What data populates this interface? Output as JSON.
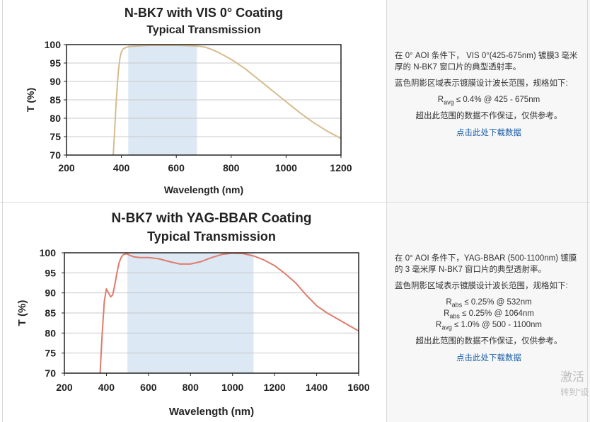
{
  "panels": [
    {
      "chart_data": {
        "type": "line",
        "title": "N-BK7 with VIS 0° Coating",
        "subtitle": "Typical Transmission",
        "xlabel": "Wavelength (nm)",
        "ylabel": "T (%)",
        "xlim": [
          200,
          1200
        ],
        "ylim": [
          70,
          100
        ],
        "xticks": [
          "200",
          "400",
          "600",
          "800",
          "1000",
          "1200"
        ],
        "yticks": [
          "70",
          "75",
          "80",
          "85",
          "90",
          "95",
          "100"
        ],
        "grid": true,
        "shaded_band": [
          425,
          675
        ],
        "shaded_color": "#dce8f4",
        "series": [
          {
            "color": "#d6bc8e",
            "x": [
              370,
              372,
              375,
              380,
              385,
              390,
              395,
              400,
              405,
              410,
              420,
              430,
              450,
              475,
              500,
              550,
              600,
              650,
              675,
              700,
              725,
              750,
              800,
              850,
              900,
              950,
              1000,
              1050,
              1100,
              1150,
              1200
            ],
            "y": [
              70,
              72,
              76,
              83,
              89,
              93.5,
              96.5,
              98,
              98.7,
              99,
              99.3,
              99.5,
              99.6,
              99.7,
              99.8,
              99.8,
              99.8,
              99.7,
              99.6,
              99.4,
              98.8,
              98,
              96,
              93.5,
              90.5,
              87.5,
              84.5,
              81.5,
              78.8,
              76.5,
              74.5
            ]
          }
        ]
      },
      "desc": {
        "line1": "在 0° AOI 条件下， VIS 0°(425-675nm) 镀膜3 毫米厚的 N-BK7 窗口片的典型透射率。",
        "line2": "蓝色阴影区域表示镀膜设计波长范围，规格如下:",
        "specs": [
          {
            "main": "R",
            "sub": "avg",
            "rest": " ≤ 0.4% @ 425 - 675nm"
          }
        ],
        "line3": "超出此范围的数据不作保证，仅供参考。",
        "link": "点击此处下载数据"
      }
    },
    {
      "chart_data": {
        "type": "line",
        "title": "N-BK7 with YAG-BBAR Coating",
        "subtitle": "Typical Transmission",
        "xlabel": "Wavelength (nm)",
        "ylabel": "T (%)",
        "xlim": [
          200,
          1600
        ],
        "ylim": [
          70,
          100
        ],
        "xticks": [
          "200",
          "400",
          "600",
          "800",
          "1000",
          "1200",
          "1400",
          "1600"
        ],
        "yticks": [
          "70",
          "75",
          "80",
          "85",
          "90",
          "95",
          "100"
        ],
        "grid": true,
        "shaded_band": [
          500,
          1100
        ],
        "shaded_color": "#dce8f4",
        "series": [
          {
            "color": "#e07b6c",
            "x": [
              370,
              380,
              390,
              400,
              410,
              420,
              430,
              440,
              450,
              460,
              470,
              480,
              490,
              500,
              510,
              530,
              560,
              600,
              650,
              700,
              750,
              800,
              850,
              900,
              950,
              1000,
              1050,
              1100,
              1150,
              1200,
              1250,
              1300,
              1350,
              1400,
              1450,
              1500,
              1550,
              1600
            ],
            "y": [
              70,
              80,
              88,
              91,
              90,
              89,
              89.5,
              92,
              95,
              97.5,
              98.8,
              99.5,
              99.7,
              99.7,
              99.4,
              99,
              98.8,
              98.8,
              98.5,
              97.8,
              97.2,
              97.2,
              97.8,
              98.8,
              99.6,
              99.9,
              99.8,
              99.2,
              98.2,
              96.8,
              94.8,
              92.5,
              89.5,
              86.8,
              85,
              83.5,
              82,
              80.5
            ]
          }
        ]
      },
      "desc": {
        "line1": "在 0° AOI 条件下，YAG-BBAR (500-1100nm) 镀膜的 3 毫米厚 N-BK7 窗口片的典型透射率。",
        "line2": "蓝色阴影区域表示镀膜设计波长范围，规格如下:",
        "specs": [
          {
            "main": "R",
            "sub": "abs",
            "rest": " ≤ 0.25% @ 532nm"
          },
          {
            "main": "R",
            "sub": "abs",
            "rest": " ≤ 0.25% @ 1064nm"
          },
          {
            "main": "R",
            "sub": "avg",
            "rest": " ≤ 1.0% @ 500 - 1100nm"
          }
        ],
        "line3": "超出此范围的数据不作保证，仅供参考。",
        "link": "点击此处下载数据"
      }
    }
  ],
  "watermark": {
    "line1": "激活",
    "line2": "转到\"设"
  }
}
